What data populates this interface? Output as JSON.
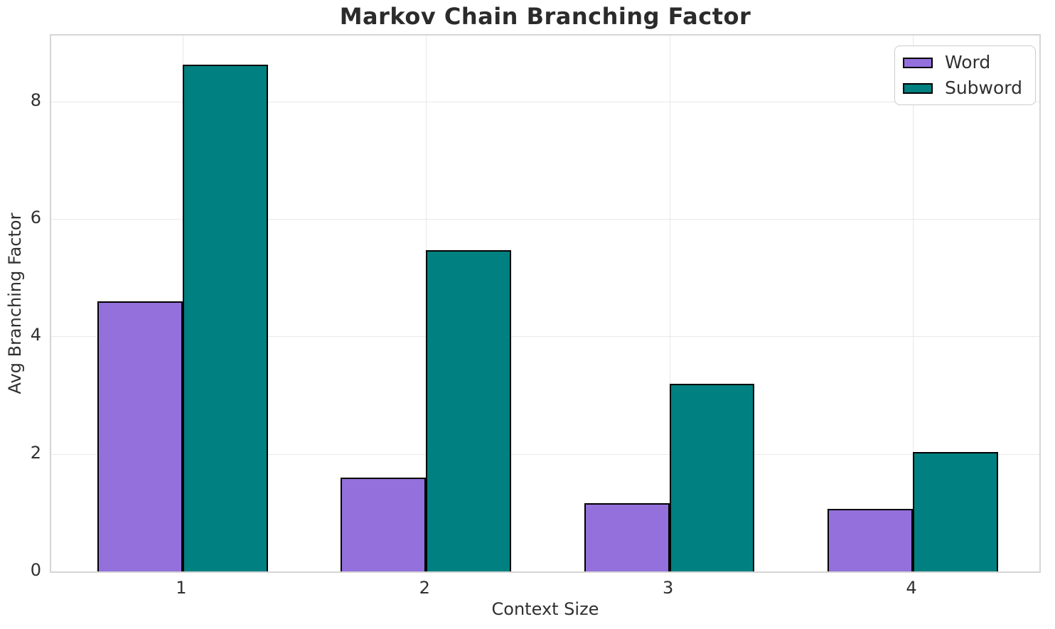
{
  "chart_data": {
    "type": "bar",
    "title": "Markov Chain Branching Factor",
    "xlabel": "Context Size",
    "ylabel": "Avg Branching Factor",
    "categories": [
      "1",
      "2",
      "3",
      "4"
    ],
    "series": [
      {
        "name": "Word",
        "color": "#9370DB",
        "edge_color": "#000000",
        "values": [
          4.6,
          1.6,
          1.16,
          1.06
        ]
      },
      {
        "name": "Subword",
        "color": "#008080",
        "edge_color": "#000000",
        "values": [
          8.62,
          5.47,
          3.19,
          2.03
        ]
      }
    ],
    "ylim": [
      0,
      9.12
    ],
    "yticks": [
      0,
      2,
      4,
      6,
      8
    ],
    "xlim": [
      -0.54,
      3.52
    ],
    "bar_width": 0.35,
    "grid": true,
    "grid_color": "#e8e8e8",
    "spine_color": "#d5d5d5",
    "background_color": "#ffffff",
    "text_color": "#303030",
    "title_color": "#2b2b2b",
    "legend_position": "upper right"
  }
}
